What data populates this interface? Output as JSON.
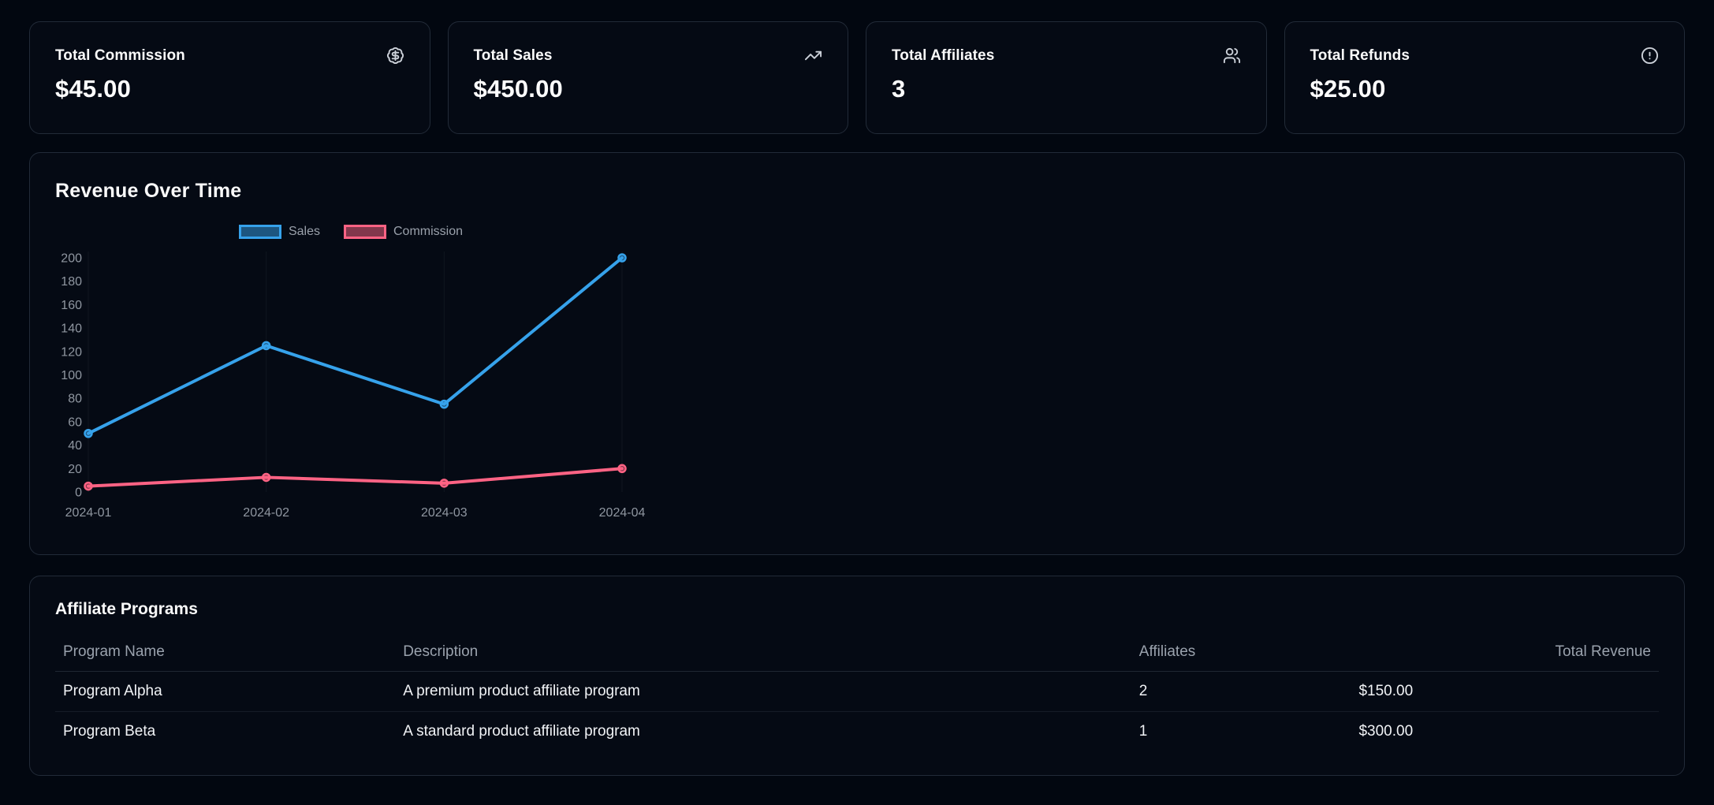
{
  "stat_cards": [
    {
      "label": "Total Commission",
      "value": "$45.00",
      "icon": "badge-dollar-sign-icon"
    },
    {
      "label": "Total Sales",
      "value": "$450.00",
      "icon": "trending-up-icon"
    },
    {
      "label": "Total Affiliates",
      "value": "3",
      "icon": "users-icon"
    },
    {
      "label": "Total Refunds",
      "value": "$25.00",
      "icon": "alert-circle-icon"
    }
  ],
  "revenue_section": {
    "title": "Revenue Over Time"
  },
  "chart_data": {
    "type": "line",
    "title": "Revenue Over Time",
    "categories": [
      "2024-01",
      "2024-02",
      "2024-03",
      "2024-04"
    ],
    "series": [
      {
        "name": "Sales",
        "values": [
          50,
          125,
          75,
          200
        ],
        "color": "#36a2eb",
        "fill_color": "rgba(54,162,235,0.5)"
      },
      {
        "name": "Commission",
        "values": [
          5,
          12.5,
          7.5,
          20
        ],
        "color": "#ff6384",
        "fill_color": "rgba(255,99,132,0.5)"
      }
    ],
    "xlabel": "",
    "ylabel": "",
    "ylim": [
      0,
      200
    ],
    "y_tick_step": 20,
    "legend_position": "top-center",
    "grid": "faint-vertical",
    "tick_color": "#8f96a0"
  },
  "programs_table": {
    "title": "Affiliate Programs",
    "columns": [
      {
        "label": "Program Name",
        "align": "left"
      },
      {
        "label": "Description",
        "align": "left"
      },
      {
        "label": "Affiliates",
        "align": "left"
      },
      {
        "label": "Total Revenue",
        "align": "right"
      }
    ],
    "rows": [
      [
        "Program Alpha",
        "A premium product affiliate program",
        "2",
        "$150.00"
      ],
      [
        "Program Beta",
        "A standard product affiliate program",
        "1",
        "$300.00"
      ]
    ]
  }
}
